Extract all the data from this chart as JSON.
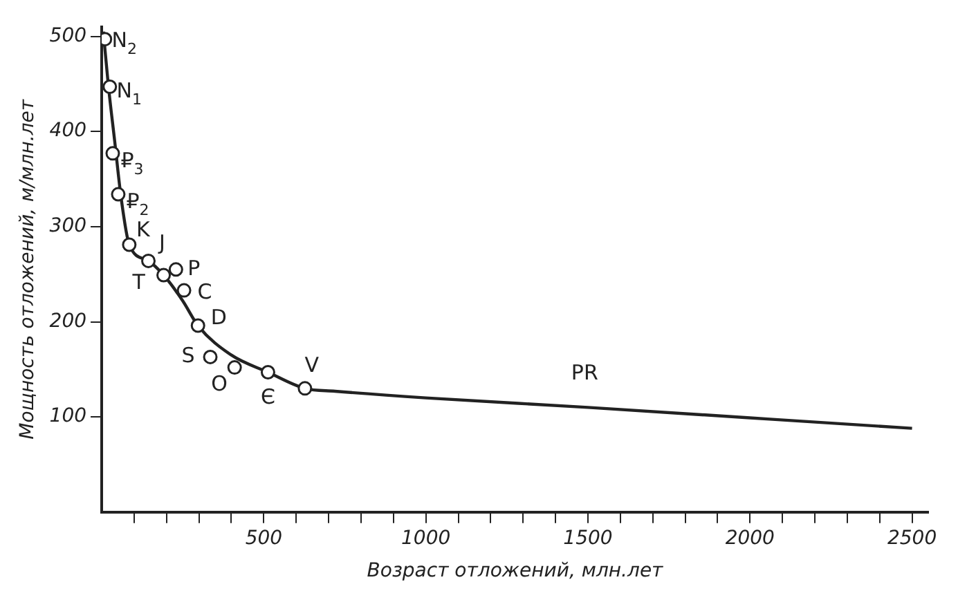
{
  "chart_data": {
    "type": "scatter",
    "xlabel": "Возраст отложений, млн.лет",
    "ylabel": "Мощность отложений, м/млн.лет",
    "xlim": [
      0,
      2550
    ],
    "ylim": [
      0,
      510
    ],
    "xticks": [
      {
        "value": 100,
        "label": null
      },
      {
        "value": 200,
        "label": null
      },
      {
        "value": 300,
        "label": null
      },
      {
        "value": 400,
        "label": null
      },
      500,
      {
        "value": 600,
        "label": null
      },
      {
        "value": 700,
        "label": null
      },
      {
        "value": 800,
        "label": null
      },
      {
        "value": 900,
        "label": null
      },
      1000,
      {
        "value": 1100,
        "label": null
      },
      {
        "value": 1200,
        "label": null
      },
      {
        "value": 1300,
        "label": null
      },
      {
        "value": 1400,
        "label": null
      },
      1500,
      {
        "value": 1600,
        "label": null
      },
      {
        "value": 1700,
        "label": null
      },
      {
        "value": 1800,
        "label": null
      },
      {
        "value": 1900,
        "label": null
      },
      2000,
      {
        "value": 2100,
        "label": null
      },
      {
        "value": 2200,
        "label": null
      },
      {
        "value": 2300,
        "label": null
      },
      {
        "value": 2400,
        "label": null
      },
      2500
    ],
    "yticks": [
      100,
      200,
      300,
      400,
      500
    ],
    "grid": false,
    "legend": false,
    "series": [
      {
        "type": "line",
        "color": "#222222",
        "marker": "none",
        "line_style": "solid",
        "x": [
          5,
          20,
          40,
          60,
          85,
          144,
          191,
          250,
          297,
          400,
          513,
          627,
          720,
          1000,
          1500,
          2000,
          2500
        ],
        "values": [
          505,
          450,
          390,
          330,
          281,
          264,
          249,
          222,
          196,
          165,
          147,
          130,
          127,
          120,
          110,
          99,
          88
        ]
      },
      {
        "type": "scatter",
        "color": "#222222",
        "marker": "circle",
        "x": [
          10,
          25,
          34,
          51,
          85,
          144,
          191,
          229,
          254,
          297,
          335,
          410,
          513,
          627
        ],
        "values": [
          497,
          447,
          377,
          334,
          281,
          264,
          249,
          255,
          233,
          196,
          163,
          152,
          147,
          130
        ]
      }
    ],
    "annotations": [
      {
        "text": "N$_{2}$",
        "x": 10,
        "y": 497
      },
      {
        "text": "N$_{1}$",
        "x": 25,
        "y": 447
      },
      {
        "text": "₽$_{3}$",
        "x": 34,
        "y": 377
      },
      {
        "text": "₽$_{2}$",
        "x": 51,
        "y": 334
      },
      {
        "text": "K",
        "x": 85,
        "y": 281
      },
      {
        "text": "J",
        "x": 144,
        "y": 264
      },
      {
        "text": "T",
        "x": 191,
        "y": 249
      },
      {
        "text": "P",
        "x": 229,
        "y": 255
      },
      {
        "text": "C",
        "x": 254,
        "y": 233
      },
      {
        "text": "D",
        "x": 297,
        "y": 196
      },
      {
        "text": "S",
        "x": 335,
        "y": 163
      },
      {
        "text": "O",
        "x": 410,
        "y": 152
      },
      {
        "text": "Є",
        "x": 513,
        "y": 147
      },
      {
        "text": "V",
        "x": 627,
        "y": 130
      },
      {
        "text": "PR",
        "x": 1490,
        "y": 110
      }
    ]
  }
}
